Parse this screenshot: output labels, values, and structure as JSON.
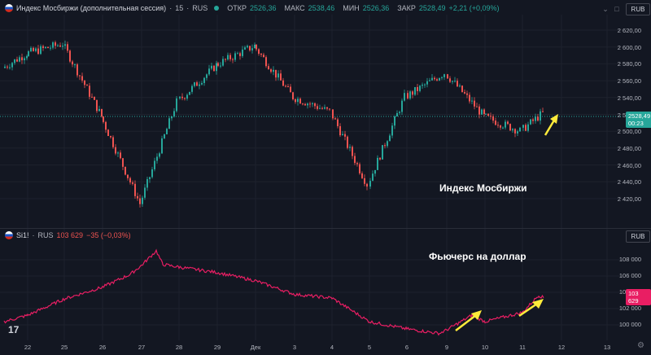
{
  "main_chart": {
    "symbol": "Индекс Мосбиржи (дополнительная сессия)",
    "interval": "15",
    "exchange": "RUS",
    "ohlc": {
      "open_label": "ОТКР",
      "open": "2526,36",
      "high_label": "МАКС",
      "high": "2538,46",
      "low_label": "МИН",
      "low": "2526,36",
      "close_label": "ЗАКР",
      "close": "2528,49",
      "change": "+2,21 (+0,09%)"
    },
    "currency": "RUB",
    "price_tag": "2528,49",
    "countdown": "00:23",
    "y_ticks": [
      "2 620,00",
      "2 600,00",
      "2 580,00",
      "2 560,00",
      "2 540,00",
      "2 520,00",
      "2 500,00",
      "2 480,00",
      "2 460,00",
      "2 440,00",
      "2 420,00"
    ],
    "annotation": "Индекс Мосбиржи"
  },
  "sub_chart": {
    "symbol": "Si1!",
    "exchange": "RUS",
    "value": "103 629",
    "change": "−35 (−0,03%)",
    "currency": "RUB",
    "price_tag": "103 629",
    "y_ticks": [
      "108 000",
      "106 000",
      "104 000",
      "102 000",
      "100 000"
    ],
    "annotation": "Фьючерс на доллар"
  },
  "x_axis": [
    "22",
    "25",
    "26",
    "27",
    "28",
    "29",
    "Дек",
    "3",
    "4",
    "5",
    "6",
    "9",
    "10",
    "11",
    "12",
    "13"
  ],
  "logo": "17",
  "colors": {
    "up": "#26a69a",
    "down": "#ef5350",
    "line": "#e91e63",
    "arrow": "#ffeb3b",
    "bg": "#131722"
  },
  "icons": {
    "settings": "gear-icon",
    "collapse": "chevron-down-icon",
    "maximize": "maximize-icon",
    "close": "close-icon"
  },
  "chart_data": [
    {
      "type": "candlestick",
      "title": "Индекс Мосбиржи (дополнительная сессия)",
      "ylim": [
        2410,
        2630
      ],
      "x": [
        "22",
        "25",
        "26",
        "27",
        "28",
        "29",
        "Дек",
        "3",
        "4",
        "5",
        "6",
        "9",
        "10",
        "11"
      ],
      "y": [
        2590,
        2600,
        2525,
        2435,
        2540,
        2578,
        2598,
        2545,
        2530,
        2455,
        2545,
        2570,
        2525,
        2528.49
      ]
    },
    {
      "type": "line",
      "title": "Si1!",
      "ylim": [
        99300,
        110500
      ],
      "x": [
        "22",
        "25",
        "26",
        "27",
        "28",
        "29",
        "Дек",
        "3",
        "4",
        "5",
        "6",
        "9",
        "10",
        "11"
      ],
      "y": [
        101000,
        103500,
        104800,
        107500,
        107000,
        106400,
        105500,
        104000,
        103600,
        101000,
        100200,
        99700,
        101600,
        103629
      ]
    }
  ]
}
